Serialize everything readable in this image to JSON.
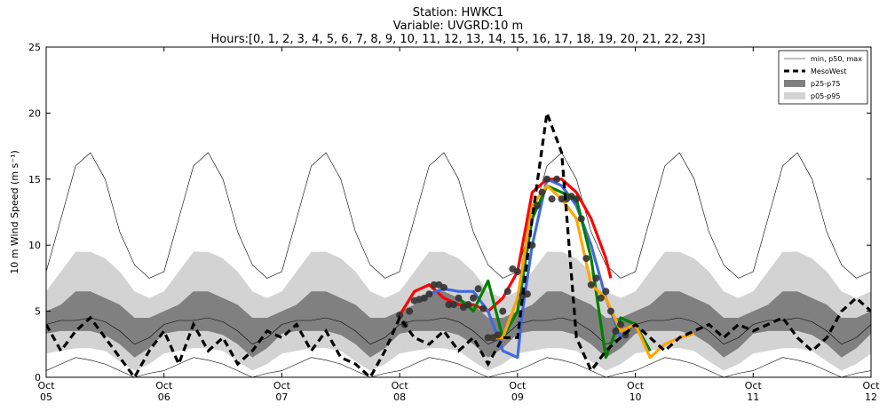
{
  "chart_data": {
    "type": "line",
    "title_lines": [
      "Station: HWKC1",
      "Variable: UVGRD:10 m",
      "Hours:[0, 1, 2, 3, 4, 5, 6, 7, 8, 9, 10, 11, 12, 13, 14, 15, 16, 17, 18, 19, 20, 21, 22, 23]"
    ],
    "ylabel": "10 m Wind Speed (m s⁻¹)",
    "xlim": [
      0,
      168
    ],
    "xticks": [
      {
        "value": 0,
        "label": "Oct 05"
      },
      {
        "value": 24,
        "label": "Oct 06"
      },
      {
        "value": 48,
        "label": "Oct 07"
      },
      {
        "value": 72,
        "label": "Oct 08"
      },
      {
        "value": 96,
        "label": "Oct 09"
      },
      {
        "value": 120,
        "label": "Oct 10"
      },
      {
        "value": 144,
        "label": "Oct 11"
      },
      {
        "value": 168,
        "label": "Oct 12"
      }
    ],
    "ylim": [
      0,
      25
    ],
    "yticks": [
      0,
      5,
      10,
      15,
      20,
      25
    ],
    "legend": "upper right",
    "x": [
      0,
      3,
      6,
      9,
      12,
      15,
      18,
      21,
      24,
      27,
      30,
      33,
      36,
      39,
      42,
      45,
      48,
      51,
      54,
      57,
      60,
      63,
      66,
      69,
      72,
      75,
      78,
      81,
      84,
      87,
      90,
      93,
      96,
      99,
      102,
      105,
      108,
      111,
      114,
      117,
      120,
      123,
      126,
      129,
      132,
      135,
      138,
      141,
      144,
      147,
      150,
      153,
      156,
      159,
      162,
      165,
      168
    ],
    "bands": [
      {
        "name": "p05-p95",
        "color": "#d3d3d3",
        "lower": [
          1.8,
          2,
          2.2,
          2.2,
          2,
          1.2,
          0.5,
          1,
          1.8,
          2,
          2.2,
          2.2,
          2,
          1.2,
          0.5,
          1,
          1.8,
          2,
          2.2,
          2.2,
          2,
          1.2,
          0.5,
          1,
          1.8,
          2,
          2.2,
          2.2,
          2,
          1.2,
          0.5,
          1,
          1.8,
          2,
          2.2,
          2.2,
          2,
          1.2,
          0.5,
          1,
          1.8,
          2,
          2.2,
          2.2,
          2,
          1.2,
          0.5,
          1,
          1.8,
          2,
          2.2,
          2.2,
          2,
          1.2,
          0.5,
          1,
          1.8
        ],
        "upper": [
          6.5,
          8,
          9.5,
          9.5,
          9,
          8,
          6.5,
          6,
          6.5,
          8,
          9.5,
          9.5,
          9,
          8,
          6.5,
          6,
          6.5,
          8,
          9.5,
          9.5,
          9,
          8,
          6.5,
          6,
          6.5,
          8,
          9.5,
          9.5,
          9,
          8,
          6.5,
          6,
          6.5,
          8,
          9.5,
          9.5,
          9,
          8,
          6.5,
          6,
          6.5,
          8,
          9.5,
          9.5,
          9,
          8,
          6.5,
          6,
          6.5,
          8,
          9.5,
          9.5,
          9,
          8,
          6.5,
          6,
          6.5
        ]
      },
      {
        "name": "p25-p75",
        "color": "#808080",
        "lower": [
          3.3,
          3.5,
          3.5,
          3.5,
          3.2,
          2.5,
          1.5,
          2.2,
          3.3,
          3.5,
          3.5,
          3.5,
          3.2,
          2.5,
          1.5,
          2.2,
          3.3,
          3.5,
          3.5,
          3.5,
          3.2,
          2.5,
          1.5,
          2.2,
          3.3,
          3.5,
          3.5,
          3.5,
          3.2,
          2.5,
          1.5,
          2.2,
          3.3,
          3.5,
          3.5,
          3.5,
          3.2,
          2.5,
          1.5,
          2.2,
          3.3,
          3.5,
          3.5,
          3.5,
          3.2,
          2.5,
          1.5,
          2.2,
          3.3,
          3.5,
          3.5,
          3.5,
          3.2,
          2.5,
          1.5,
          2.2,
          3.3
        ],
        "upper": [
          5,
          5.5,
          6.5,
          6.5,
          6,
          5.5,
          4.5,
          4.5,
          5,
          5.5,
          6.5,
          6.5,
          6,
          5.5,
          4.5,
          4.5,
          5,
          5.5,
          6.5,
          6.5,
          6,
          5.5,
          4.5,
          4.5,
          5,
          5.5,
          6.5,
          6.5,
          6,
          5.5,
          4.5,
          4.5,
          5,
          5.5,
          6.5,
          6.5,
          6,
          5.5,
          4.5,
          4.5,
          5,
          5.5,
          6.5,
          6.5,
          6,
          5.5,
          4.5,
          4.5,
          5,
          5.5,
          6.5,
          6.5,
          6,
          5.5,
          4.5,
          4.5,
          5
        ]
      }
    ],
    "lines": {
      "name": "min, p50, max",
      "color": "#000000",
      "min": [
        0.5,
        1,
        1.5,
        1.3,
        1,
        0.5,
        0,
        0.3,
        0.5,
        1,
        1.5,
        1.3,
        1,
        0.5,
        0,
        0.3,
        0.5,
        1,
        1.5,
        1.3,
        1,
        0.5,
        0,
        0.3,
        0.5,
        1,
        1.5,
        1.3,
        1,
        0.5,
        0,
        0.3,
        0.5,
        1,
        1.5,
        1.3,
        1,
        0.5,
        0,
        0.3,
        0.5,
        1,
        1.5,
        1.3,
        1,
        0.5,
        0,
        0.3,
        0.5,
        1,
        1.5,
        1.3,
        1,
        0.5,
        0,
        0.3,
        0.5
      ],
      "p50": [
        4,
        4.3,
        4.3,
        4.5,
        4.2,
        3.5,
        2.5,
        3,
        4,
        4.3,
        4.3,
        4.5,
        4.2,
        3.5,
        2.5,
        3,
        4,
        4.3,
        4.3,
        4.5,
        4.2,
        3.5,
        2.5,
        3,
        4,
        4.3,
        4.3,
        4.5,
        4.2,
        3.5,
        2.5,
        3,
        4,
        4.3,
        4.3,
        4.5,
        4.2,
        3.5,
        2.5,
        3,
        4,
        4.3,
        4.3,
        4.5,
        4.2,
        3.5,
        2.5,
        3,
        4,
        4.3,
        4.3,
        4.5,
        4.2,
        3.5,
        2.5,
        3,
        4
      ],
      "max": [
        8,
        12,
        16,
        17,
        15,
        11,
        8.5,
        7.5,
        8,
        12,
        16,
        17,
        15,
        11,
        8.5,
        7.5,
        8,
        12,
        16,
        17,
        15,
        11,
        8.5,
        7.5,
        8,
        12,
        16,
        17,
        15,
        11,
        8.5,
        7.5,
        8,
        12,
        16,
        17,
        15,
        11,
        8.5,
        7.5,
        8,
        12,
        16,
        17,
        15,
        11,
        8.5,
        7.5,
        8,
        12,
        16,
        17,
        15,
        11,
        8.5,
        7.5,
        8
      ]
    },
    "series": [
      {
        "color": "#ff0000",
        "x": [
          72,
          75,
          78,
          81,
          84,
          87,
          90,
          93,
          96,
          99,
          102,
          105,
          108,
          111,
          114,
          115
        ],
        "values": [
          4.7,
          6.5,
          7,
          6,
          5.5,
          5.5,
          5,
          6,
          8,
          14,
          15,
          15,
          14,
          12,
          9,
          7.5
        ]
      },
      {
        "color": "#4169e1",
        "x": [
          78,
          81,
          84,
          87,
          90,
          93,
          96,
          97,
          99,
          102,
          105,
          108,
          111,
          114,
          117
        ],
        "values": [
          6.3,
          6.7,
          6.5,
          6.5,
          5,
          2,
          1.5,
          5,
          10,
          15,
          14.5,
          13,
          10,
          6,
          3
        ]
      },
      {
        "color": "#008000",
        "x": [
          84,
          87,
          90,
          93,
          96,
          99,
          102,
          105,
          108,
          111,
          114,
          117,
          120,
          123
        ],
        "values": [
          6,
          5,
          7.3,
          3,
          5,
          12,
          14.5,
          14,
          13.5,
          9,
          1.5,
          4.5,
          4,
          2
        ]
      },
      {
        "color": "#ffa500",
        "x": [
          90,
          93,
          96,
          99,
          102,
          105,
          108,
          111,
          114,
          117,
          120,
          123,
          126,
          129,
          132
        ],
        "values": [
          3,
          3,
          6,
          13,
          14.5,
          13.5,
          12,
          7,
          6,
          3.5,
          4,
          1.5,
          2.5,
          3,
          3.3
        ]
      },
      {
        "name": "MesoWest",
        "color": "#000000",
        "dashed": true,
        "x": [
          0,
          3,
          6,
          9,
          12,
          15,
          18,
          21,
          24,
          27,
          30,
          33,
          36,
          39,
          42,
          45,
          48,
          51,
          54,
          57,
          60,
          63,
          66,
          69,
          72,
          75,
          78,
          81,
          84,
          87,
          90,
          93,
          96,
          99,
          102,
          105,
          108,
          111,
          114,
          117,
          120,
          123,
          126,
          129,
          132,
          135,
          138,
          141,
          144,
          147,
          150,
          153,
          156,
          159,
          162,
          165,
          168
        ],
        "values": [
          4,
          2,
          3.5,
          4.5,
          3,
          1.5,
          0,
          2,
          3.5,
          1,
          4,
          2,
          3,
          1,
          2,
          3.5,
          3,
          4,
          2,
          3.5,
          1.5,
          1,
          0,
          2,
          4.5,
          3,
          2.5,
          3.5,
          2,
          3,
          1,
          3,
          3,
          12,
          20,
          17,
          3,
          0.5,
          2,
          3,
          4,
          3,
          2,
          3,
          3.5,
          4,
          3,
          4,
          3.5,
          4,
          4.5,
          3,
          2,
          3,
          5,
          6,
          5
        ]
      }
    ],
    "points": {
      "color": "#333333",
      "x": [
        72,
        73,
        74,
        75,
        76,
        77,
        78,
        79,
        80,
        81,
        82,
        83,
        84,
        85,
        86,
        87,
        88,
        89,
        90,
        91,
        92,
        93,
        94,
        95,
        96,
        97,
        98,
        99,
        100,
        101,
        102,
        103,
        104,
        105,
        106,
        107,
        108,
        109,
        110,
        111,
        112,
        113,
        114,
        115,
        116,
        117,
        118
      ],
      "values": [
        4.7,
        4,
        5,
        5.8,
        5.9,
        6,
        6.3,
        7,
        7,
        6.8,
        5.5,
        5.5,
        6,
        5.3,
        5.5,
        6,
        6.7,
        5.2,
        3,
        3,
        3.2,
        5,
        6.5,
        8.2,
        8,
        6.2,
        6.3,
        10,
        13,
        14,
        15,
        13.5,
        15,
        13.5,
        13.5,
        13.7,
        13.5,
        12,
        9,
        7,
        7.5,
        6,
        6.5,
        5,
        3.5,
        4,
        3.2
      ]
    }
  }
}
